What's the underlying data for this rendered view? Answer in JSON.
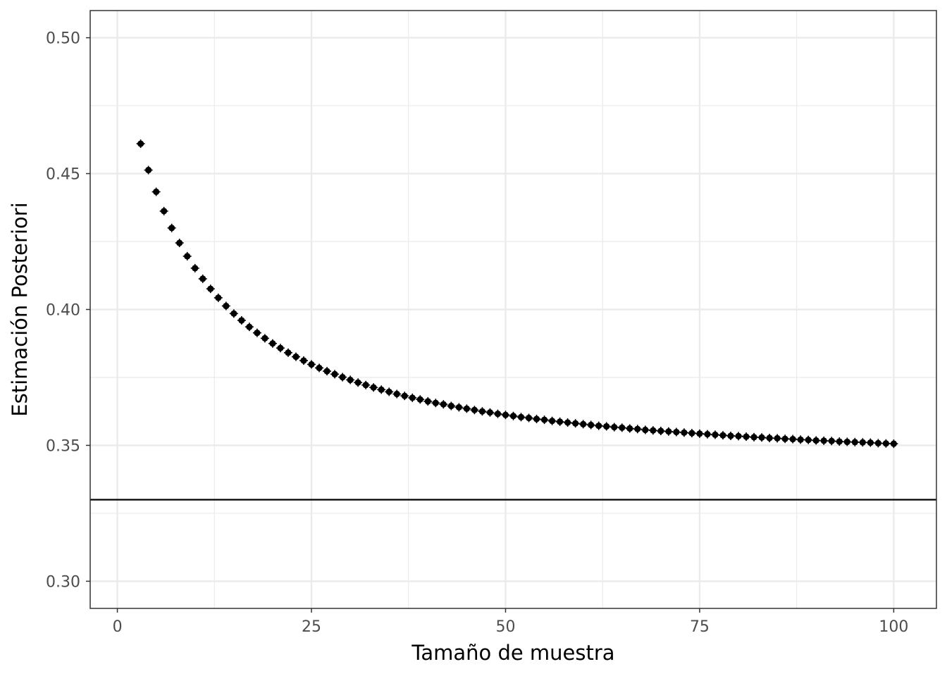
{
  "chart_data": {
    "type": "scatter",
    "title": "",
    "xlabel": "Tamaño de muestra",
    "ylabel": "Estimación Posteriori",
    "xlim": [
      -3.5,
      105.5
    ],
    "ylim": [
      0.29,
      0.51
    ],
    "x_ticks": [
      "0",
      "25",
      "50",
      "75",
      "100"
    ],
    "y_ticks": [
      "0.30",
      "0.35",
      "0.40",
      "0.45",
      "0.50"
    ],
    "grid": true,
    "theme": "bw",
    "reference_line": {
      "orientation": "horizontal",
      "y": 0.33
    },
    "series": [
      {
        "x": [
          3,
          4,
          5,
          6,
          7,
          8,
          9,
          10,
          11,
          12,
          13,
          14,
          15,
          16,
          17,
          18,
          19,
          20,
          21,
          22,
          23,
          24,
          25,
          26,
          27,
          28,
          29,
          30,
          31,
          32,
          33,
          34,
          35,
          36,
          37,
          38,
          39,
          40,
          41,
          42,
          43,
          44,
          45,
          46,
          47,
          48,
          49,
          50,
          51,
          52,
          53,
          54,
          55,
          56,
          57,
          58,
          59,
          60,
          61,
          62,
          63,
          64,
          65,
          66,
          67,
          68,
          69,
          70,
          71,
          72,
          73,
          74,
          75,
          76,
          77,
          78,
          79,
          80,
          81,
          82,
          83,
          84,
          85,
          86,
          87,
          88,
          89,
          90,
          91,
          92,
          93,
          94,
          95,
          96,
          97,
          98,
          99,
          100
        ],
        "y": [
          0.461,
          0.4513,
          0.4433,
          0.4362,
          0.43,
          0.4245,
          0.4196,
          0.4152,
          0.4113,
          0.4076,
          0.4043,
          0.4013,
          0.3985,
          0.396,
          0.3936,
          0.3914,
          0.3894,
          0.3875,
          0.3858,
          0.3841,
          0.3826,
          0.3812,
          0.3798,
          0.3785,
          0.3773,
          0.3762,
          0.3751,
          0.3741,
          0.3731,
          0.3722,
          0.3713,
          0.3705,
          0.3697,
          0.3689,
          0.3682,
          0.3675,
          0.3669,
          0.3662,
          0.3656,
          0.3651,
          0.3645,
          0.364,
          0.3635,
          0.363,
          0.3625,
          0.3621,
          0.3616,
          0.3612,
          0.3608,
          0.3604,
          0.3601,
          0.3597,
          0.3594,
          0.359,
          0.3587,
          0.3584,
          0.3581,
          0.3578,
          0.3575,
          0.3572,
          0.357,
          0.3567,
          0.3565,
          0.3562,
          0.356,
          0.3557,
          0.3555,
          0.3553,
          0.3551,
          0.3549,
          0.3547,
          0.3545,
          0.3543,
          0.3541,
          0.3539,
          0.3537,
          0.3535,
          0.3534,
          0.3532,
          0.353,
          0.3529,
          0.3527,
          0.3526,
          0.3524,
          0.3523,
          0.3521,
          0.352,
          0.3518,
          0.3517,
          0.3516,
          0.3514,
          0.3513,
          0.3512,
          0.3511,
          0.351,
          0.3508,
          0.3507,
          0.3506
        ],
        "error_bars": true,
        "color": "#000000"
      }
    ],
    "colors": {
      "points": "#000000",
      "grid": "#ebebeb",
      "panel_border": "#333333",
      "tick_text": "#4d4d4d"
    }
  }
}
